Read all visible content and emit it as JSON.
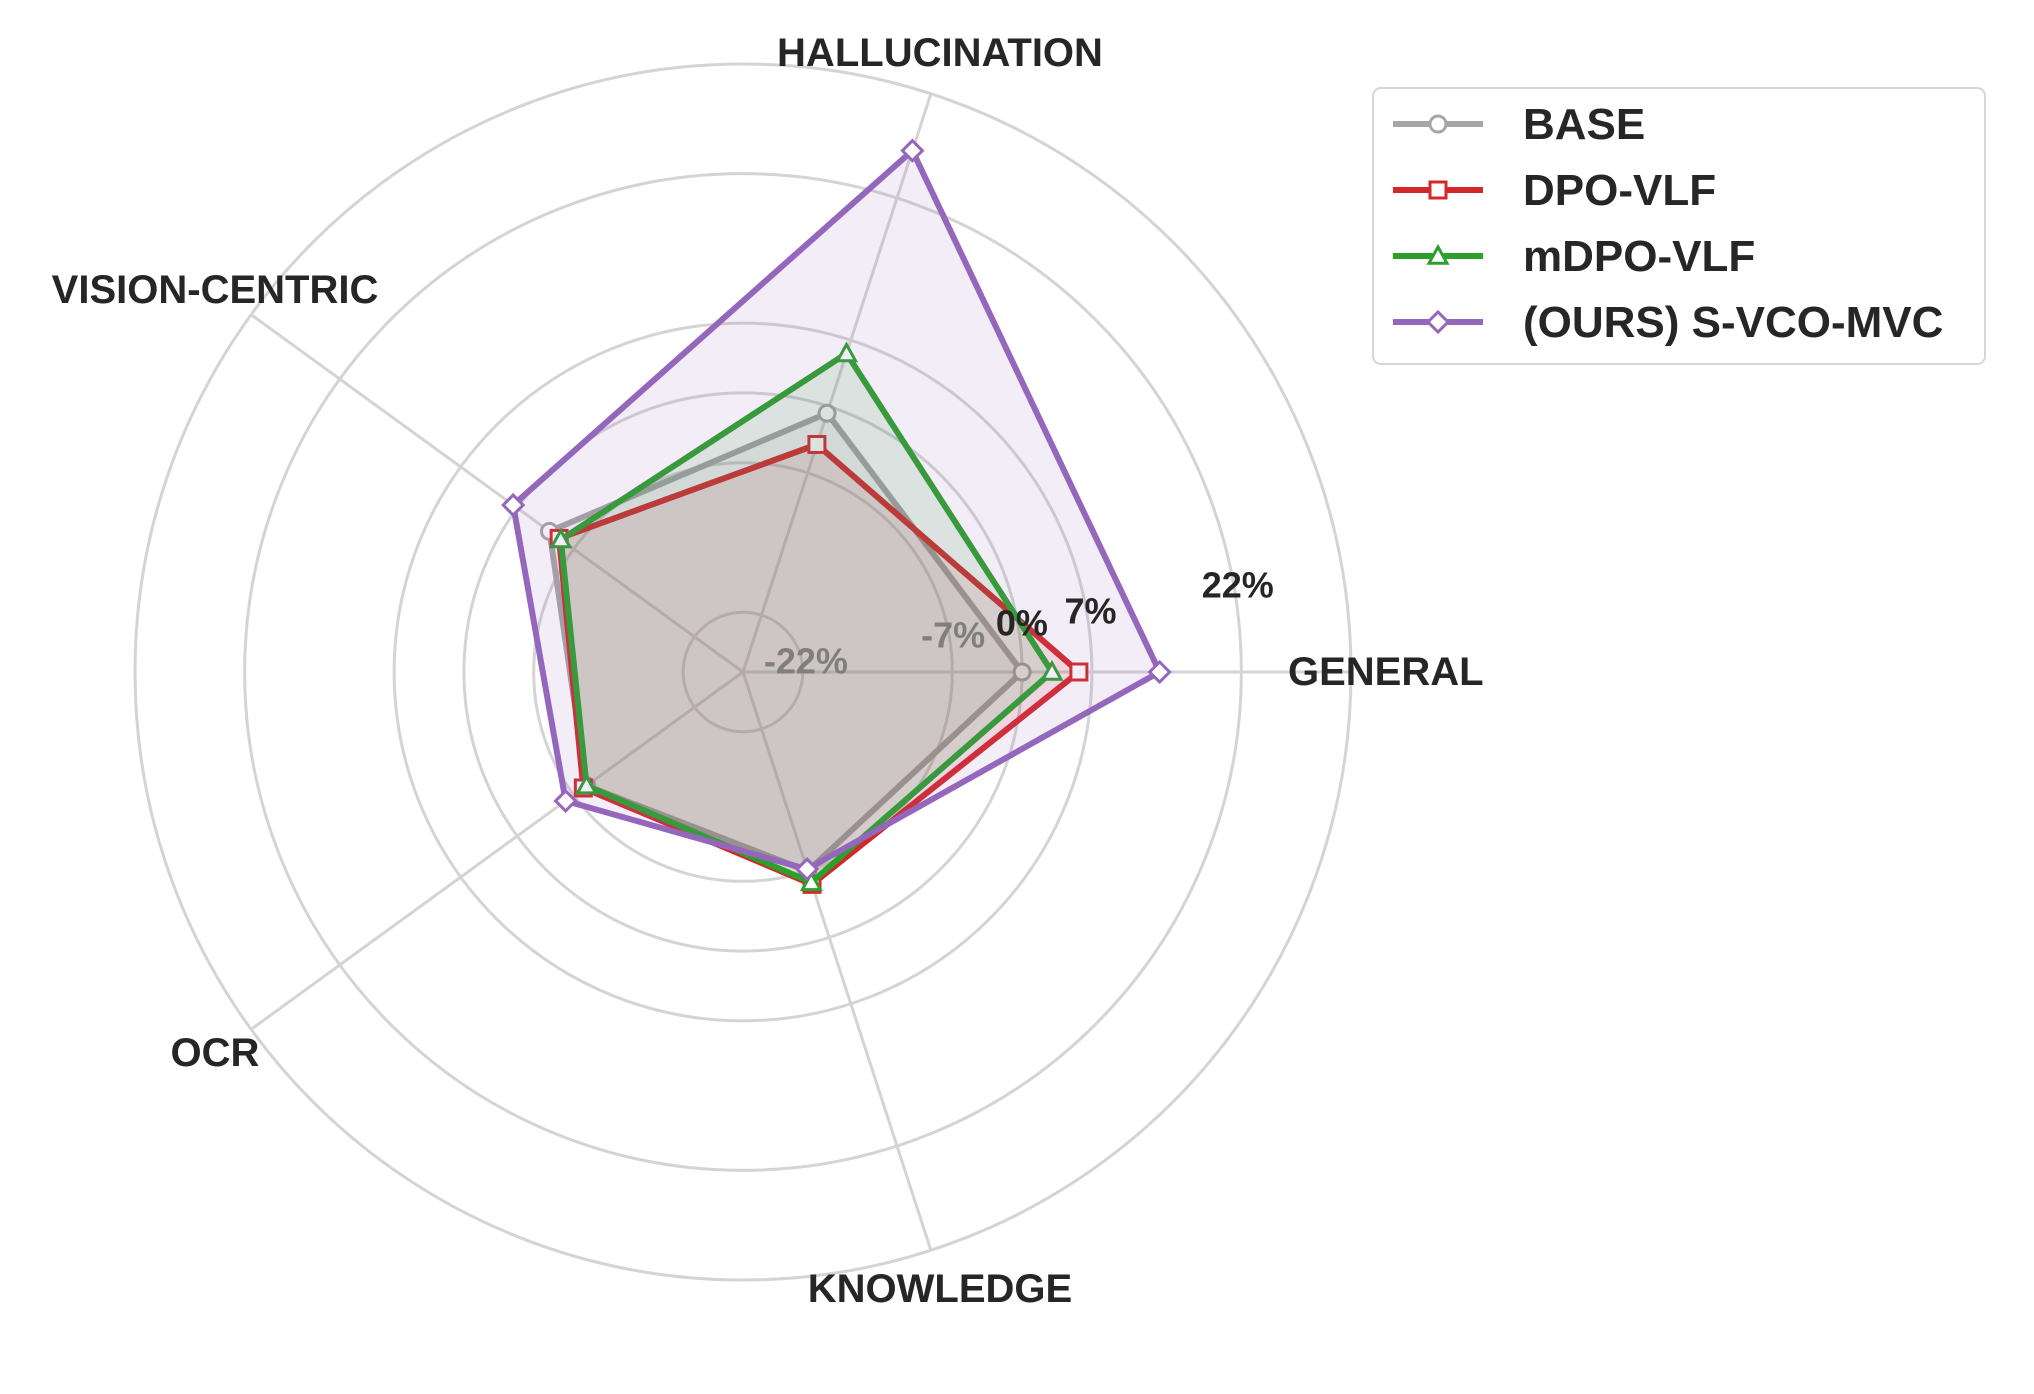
{
  "chart_data": {
    "type": "radar",
    "axes": [
      "GENERAL",
      "HALLUCINATION",
      "VISION-CENTRIC",
      "OCR",
      "KNOWLEDGE"
    ],
    "radial_ticks": [
      "-22%",
      "-7%",
      "0%",
      "7%",
      "22%"
    ],
    "series": [
      {
        "name": "BASE",
        "color": "#a6a6a6",
        "marker": "circle",
        "values": [
          0.0,
          -0.7,
          -4.0,
          -8.6,
          -7.0
        ]
      },
      {
        "name": "DPO-VLF",
        "color": "#d62728",
        "marker": "square",
        "values": [
          5.7,
          -4.0,
          -5.2,
          -8.2,
          -5.6
        ]
      },
      {
        "name": "mDPO-VLF",
        "color": "#2ca02c",
        "marker": "triangle",
        "values": [
          3.0,
          5.6,
          -5.4,
          -8.6,
          -5.8
        ]
      },
      {
        "name": "(OURS) S-VCO-MVC",
        "color": "#9467bd",
        "marker": "diamond",
        "values": [
          13.8,
          27.0,
          0.5,
          -6.0,
          -7.2
        ]
      }
    ],
    "legend_position": "top-right",
    "grid": true
  }
}
